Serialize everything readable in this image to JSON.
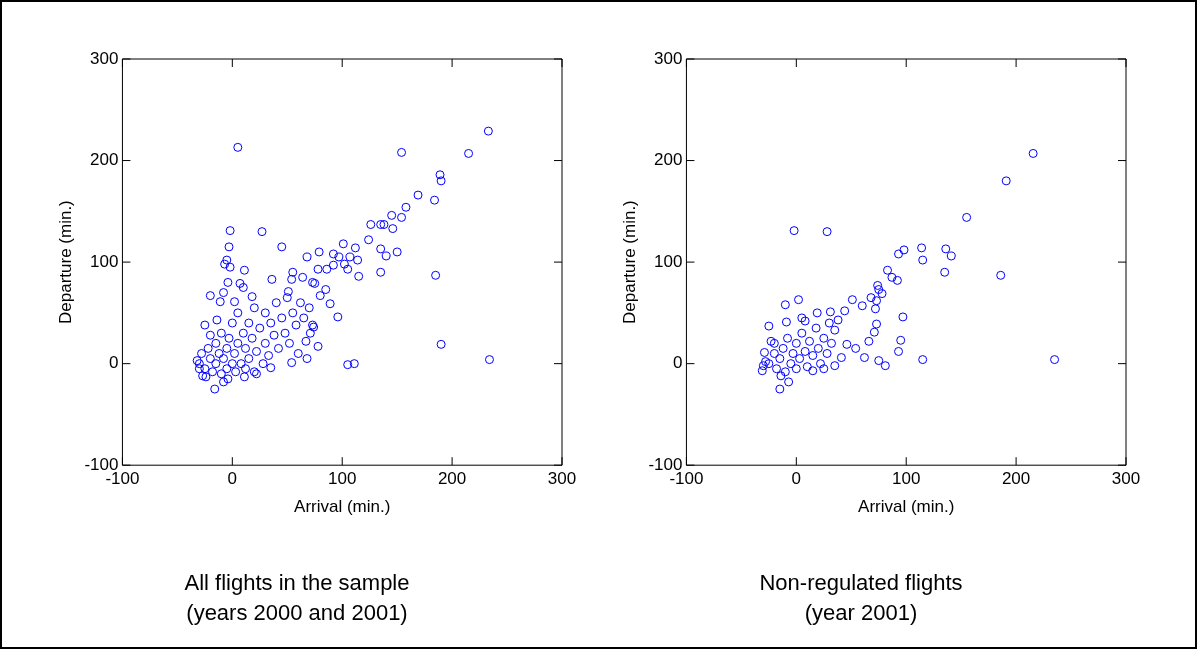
{
  "chart_data": [
    {
      "type": "scatter",
      "title": "All flights in the sample",
      "subtitle": "(years 2000 and 2001)",
      "xlabel": "Arrival (min.)",
      "ylabel": "Departure (min.)",
      "xlim": [
        -100,
        300
      ],
      "ylim": [
        -100,
        300
      ],
      "xticks": [
        -100,
        0,
        100,
        200,
        300
      ],
      "yticks": [
        -100,
        0,
        100,
        200,
        300
      ],
      "marker": "circle",
      "legend": false,
      "grid": false,
      "series": [
        {
          "color": "#0000ff",
          "x": [
            233,
            5,
            154,
            215,
            189,
            190,
            169,
            184,
            158,
            145,
            154,
            126,
            135,
            138,
            146,
            124,
            -2,
            27,
            -3,
            45,
            135,
            150,
            140,
            101,
            112,
            79,
            68,
            92,
            97,
            107,
            114,
            -5,
            -7,
            -2,
            11,
            102,
            92,
            105,
            135,
            185,
            115,
            78,
            86,
            55,
            36,
            -4,
            7,
            -20,
            -11,
            96,
            190,
            234,
            105,
            111,
            -16,
            -8,
            68,
            78,
            89,
            85,
            75,
            64,
            54,
            74,
            71,
            -30,
            -28,
            -25,
            -22,
            -20,
            -18,
            -15,
            -15,
            -12,
            -10,
            -10,
            -8,
            -5,
            -5,
            -3,
            0,
            0,
            2,
            3,
            5,
            5,
            8,
            10,
            12,
            12,
            15,
            15,
            18,
            20,
            20,
            22,
            25,
            28,
            30,
            30,
            33,
            35,
            38,
            40,
            42,
            45,
            48,
            50,
            52,
            55,
            58,
            60,
            62,
            65,
            70,
            -30,
            -32,
            -27,
            -25,
            -14,
            2,
            18,
            51,
            73,
            80,
            73,
            67,
            54,
            35,
            22,
            11,
            -4,
            -24,
            -8,
            10,
            -20
          ],
          "values": [
            229,
            213,
            208,
            207,
            186,
            180,
            166,
            161,
            154,
            146,
            144,
            137,
            137,
            137,
            133,
            122,
            131,
            130,
            115,
            115,
            113,
            110,
            106,
            118,
            114,
            110,
            105,
            108,
            105,
            105,
            102,
            102,
            98,
            95,
            92,
            98,
            97,
            93,
            90,
            87,
            86,
            93,
            93,
            90,
            83,
            80,
            79,
            67,
            61,
            46,
            19,
            4,
            -1,
            0,
            -25,
            -18,
            5,
            17,
            59,
            73,
            79,
            85,
            83,
            36,
            30,
            0,
            10,
            -5,
            15,
            5,
            -8,
            20,
            0,
            10,
            -10,
            30,
            5,
            15,
            -5,
            25,
            0,
            40,
            10,
            -8,
            20,
            50,
            0,
            30,
            -5,
            15,
            40,
            5,
            25,
            -8,
            55,
            12,
            35,
            0,
            20,
            50,
            8,
            40,
            28,
            60,
            15,
            45,
            30,
            65,
            20,
            50,
            38,
            10,
            60,
            45,
            55,
            -5,
            3,
            -12,
            38,
            43,
            61,
            66,
            71,
            80,
            67,
            38,
            22,
            1,
            -4,
            -10,
            -13,
            -15,
            -13,
            70,
            75,
            28
          ]
        }
      ]
    },
    {
      "type": "scatter",
      "title": "Non-regulated flights",
      "subtitle": "(year 2001)",
      "xlabel": "Arrival (min.)",
      "ylabel": "Departure (min.)",
      "xlim": [
        -100,
        300
      ],
      "ylim": [
        -100,
        300
      ],
      "xticks": [
        -100,
        0,
        100,
        200,
        300
      ],
      "yticks": [
        -100,
        0,
        100,
        200,
        300
      ],
      "marker": "circle",
      "legend": false,
      "grid": false,
      "series": [
        {
          "color": "#0000ff",
          "x": [
            215.5,
            191,
            155,
            -2,
            28,
            93,
            98,
            114,
            115,
            136,
            141,
            135,
            186,
            83,
            87,
            92,
            74,
            75,
            78,
            68,
            73,
            60,
            51,
            72,
            97,
            73,
            71,
            66,
            95,
            93,
            115,
            235,
            75,
            81,
            62,
            54,
            46,
            -10,
            2,
            -25,
            19,
            31,
            -9,
            8,
            -15,
            -7,
            -31,
            -30,
            -29,
            -23,
            38,
            44,
            35,
            41,
            35,
            15,
            -14,
            -25,
            -20,
            -18,
            -15,
            -12,
            -10,
            -8,
            -5,
            -3,
            0,
            0,
            3,
            5,
            8,
            10,
            12,
            15,
            18,
            20,
            22,
            25,
            28,
            30,
            32,
            -20,
            5,
            25,
            -28
          ],
          "values": [
            207,
            180,
            144,
            131,
            130,
            108,
            112,
            114,
            102,
            113,
            106,
            90,
            87,
            92,
            85,
            82,
            77,
            73,
            69,
            65,
            62,
            57,
            63,
            54,
            46,
            39,
            31,
            22,
            23,
            12,
            4,
            4,
            3,
            -2,
            6,
            15,
            19,
            58,
            63,
            37,
            50,
            51,
            41,
            42,
            -25,
            -18,
            -7,
            -2,
            11,
            22,
            43,
            52,
            33,
            6,
            -2,
            -7,
            -12,
            0,
            10,
            -5,
            5,
            15,
            -8,
            25,
            0,
            10,
            20,
            -5,
            5,
            30,
            12,
            -3,
            22,
            8,
            35,
            15,
            0,
            25,
            10,
            40,
            20,
            20,
            45,
            -5,
            2
          ]
        }
      ]
    }
  ]
}
